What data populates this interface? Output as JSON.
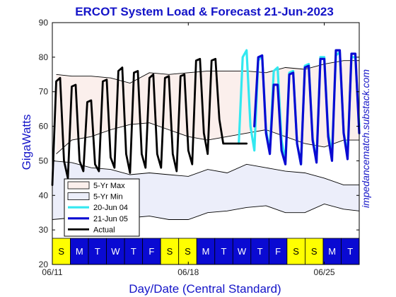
{
  "chart_data": {
    "type": "line",
    "title": "ERCOT System Load & Forecast 21-Jun-2023",
    "xlabel": "Day/Date (Central Standard)",
    "ylabel": "GigaWatts",
    "watermark": "impedancematch.substack.com",
    "ylim": [
      20,
      90
    ],
    "yticks": [
      20,
      30,
      40,
      50,
      60,
      70,
      80,
      90
    ],
    "xlim": [
      0,
      15.8
    ],
    "xticks": [
      {
        "x": 0,
        "label": "06/11"
      },
      {
        "x": 7,
        "label": "06/18"
      },
      {
        "x": 14,
        "label": "06/25"
      }
    ],
    "grid": false,
    "legend_position": "lower-left",
    "day_strip": [
      {
        "label": "S",
        "weekend": true
      },
      {
        "label": "M",
        "weekend": false
      },
      {
        "label": "T",
        "weekend": false
      },
      {
        "label": "W",
        "weekend": false
      },
      {
        "label": "T",
        "weekend": false
      },
      {
        "label": "F",
        "weekend": false
      },
      {
        "label": "S",
        "weekend": true
      },
      {
        "label": "S",
        "weekend": true
      },
      {
        "label": "M",
        "weekend": false
      },
      {
        "label": "T",
        "weekend": false
      },
      {
        "label": "W",
        "weekend": false
      },
      {
        "label": "T",
        "weekend": false
      },
      {
        "label": "F",
        "weekend": false
      },
      {
        "label": "S",
        "weekend": true
      },
      {
        "label": "S",
        "weekend": true
      },
      {
        "label": "M",
        "weekend": false
      },
      {
        "label": "T",
        "weekend": false
      }
    ],
    "colors": {
      "max_fill": "#fbefec",
      "min_fill": "#eceefa",
      "forecast_jun04": "#33e8f0",
      "forecast_jun05": "#0a0ad2",
      "actual": "#000000",
      "weekend": "#ffff00",
      "weekday": "#0a0ad2"
    },
    "series": [
      {
        "name": "5-Yr Max",
        "style": "band",
        "upper": {
          "x": [
            0.2,
            1.0,
            2.0,
            3.0,
            4.0,
            5.0,
            6.0,
            7.0,
            8.0,
            9.0,
            10.0,
            11.0,
            12.0,
            13.0,
            14.0,
            15.0,
            15.8
          ],
          "y": [
            75.0,
            74.5,
            74.5,
            74.0,
            72.5,
            75.5,
            75.0,
            75.5,
            76.0,
            76.0,
            76.0,
            75.5,
            77.0,
            76.5,
            78.0,
            79.0,
            79.0
          ]
        },
        "lower": {
          "x": [
            0.2,
            1.0,
            2.0,
            3.0,
            4.0,
            5.0,
            6.0,
            7.0,
            8.0,
            9.0,
            10.0,
            11.0,
            12.0,
            13.0,
            14.0,
            15.0,
            15.8
          ],
          "y": [
            52.0,
            56.0,
            57.0,
            59.0,
            60.5,
            61.0,
            59.0,
            57.0,
            56.0,
            57.0,
            58.0,
            59.0,
            57.0,
            55.0,
            54.0,
            56.0,
            56.0
          ]
        }
      },
      {
        "name": "5-Yr Min",
        "style": "band",
        "upper": {
          "x": [
            0.0,
            1.0,
            2.0,
            3.0,
            4.0,
            5.0,
            6.0,
            7.0,
            8.0,
            9.0,
            10.0,
            11.0,
            12.0,
            13.0,
            14.0,
            15.0,
            15.8
          ],
          "y": [
            50.0,
            49.5,
            48.0,
            47.5,
            46.0,
            46.5,
            46.0,
            45.5,
            47.5,
            46.5,
            49.0,
            48.0,
            47.0,
            46.5,
            45.0,
            43.0,
            43.0
          ]
        },
        "lower": {
          "x": [
            0.0,
            1.0,
            2.0,
            3.0,
            4.0,
            5.0,
            6.0,
            7.0,
            8.0,
            9.0,
            10.0,
            11.0,
            12.0,
            13.0,
            14.0,
            15.0,
            15.8
          ],
          "y": [
            33.0,
            33.5,
            34.0,
            33.5,
            33.5,
            34.0,
            33.0,
            33.0,
            35.0,
            35.5,
            36.5,
            37.0,
            35.0,
            35.0,
            37.5,
            36.0,
            35.5
          ]
        }
      },
      {
        "name": "20-Jun 04",
        "style": "line",
        "x": [
          9.6,
          9.8,
          10.0,
          10.2,
          10.4,
          10.6,
          10.8,
          11.0,
          11.2,
          11.4,
          11.6,
          11.8,
          12.0,
          12.2,
          12.4,
          12.6,
          12.8,
          13.0,
          13.2,
          13.4,
          13.6,
          13.8,
          14.0,
          14.2,
          14.4,
          14.6,
          14.8,
          15.0,
          15.2,
          15.4,
          15.6,
          15.8
        ],
        "y": [
          55.0,
          80.0,
          82.0,
          60.0,
          53.0,
          79.0,
          80.5,
          59.0,
          53.0,
          76.0,
          77.0,
          56.0,
          50.0,
          75.5,
          76.0,
          55.0,
          49.0,
          77.5,
          78.0,
          56.5,
          50.0,
          80.0,
          80.0,
          58.0,
          52.0,
          80.5,
          81.5,
          58.0,
          52.0,
          80.0,
          80.0,
          60.0
        ]
      },
      {
        "name": "21-Jun 05",
        "style": "line",
        "x": [
          10.4,
          10.6,
          10.8,
          11.0,
          11.2,
          11.4,
          11.6,
          11.8,
          12.0,
          12.2,
          12.4,
          12.6,
          12.8,
          13.0,
          13.2,
          13.4,
          13.6,
          13.8,
          14.0,
          14.2,
          14.4,
          14.6,
          14.8,
          15.0,
          15.2,
          15.4,
          15.6,
          15.8
        ],
        "y": [
          60.0,
          80.0,
          80.5,
          58.0,
          52.0,
          72.0,
          72.0,
          53.0,
          49.0,
          75.0,
          75.5,
          55.0,
          49.0,
          77.0,
          77.5,
          56.0,
          49.5,
          79.5,
          79.5,
          57.0,
          50.0,
          82.0,
          82.0,
          58.0,
          50.5,
          81.0,
          81.0,
          58.0
        ]
      },
      {
        "name": "Actual",
        "style": "line",
        "x": [
          0.0,
          0.2,
          0.4,
          0.6,
          0.8,
          1.0,
          1.2,
          1.4,
          1.6,
          1.8,
          2.0,
          2.2,
          2.4,
          2.6,
          2.8,
          3.0,
          3.2,
          3.4,
          3.6,
          3.8,
          4.0,
          4.2,
          4.4,
          4.6,
          4.8,
          5.0,
          5.2,
          5.4,
          5.6,
          5.8,
          6.0,
          6.2,
          6.4,
          6.6,
          6.8,
          7.0,
          7.2,
          7.4,
          7.6,
          7.8,
          8.0,
          8.2,
          8.4,
          8.6,
          8.8,
          9.0,
          9.2,
          9.4,
          9.6,
          9.8,
          10.0
        ],
        "y": [
          43.0,
          73.0,
          74.0,
          50.0,
          45.0,
          71.5,
          72.0,
          50.0,
          47.0,
          67.0,
          67.5,
          49.0,
          47.0,
          73.0,
          73.5,
          51.0,
          48.0,
          76.0,
          77.0,
          52.0,
          46.5,
          75.5,
          76.0,
          52.0,
          48.0,
          74.0,
          75.0,
          52.0,
          48.0,
          74.0,
          74.5,
          52.0,
          47.0,
          74.5,
          75.0,
          53.0,
          49.0,
          79.0,
          79.5,
          58.0,
          52.0,
          79.0,
          79.5,
          62.0,
          55.0,
          55.0,
          55.0,
          55.0,
          55.0,
          55.0,
          55.0
        ]
      }
    ]
  }
}
